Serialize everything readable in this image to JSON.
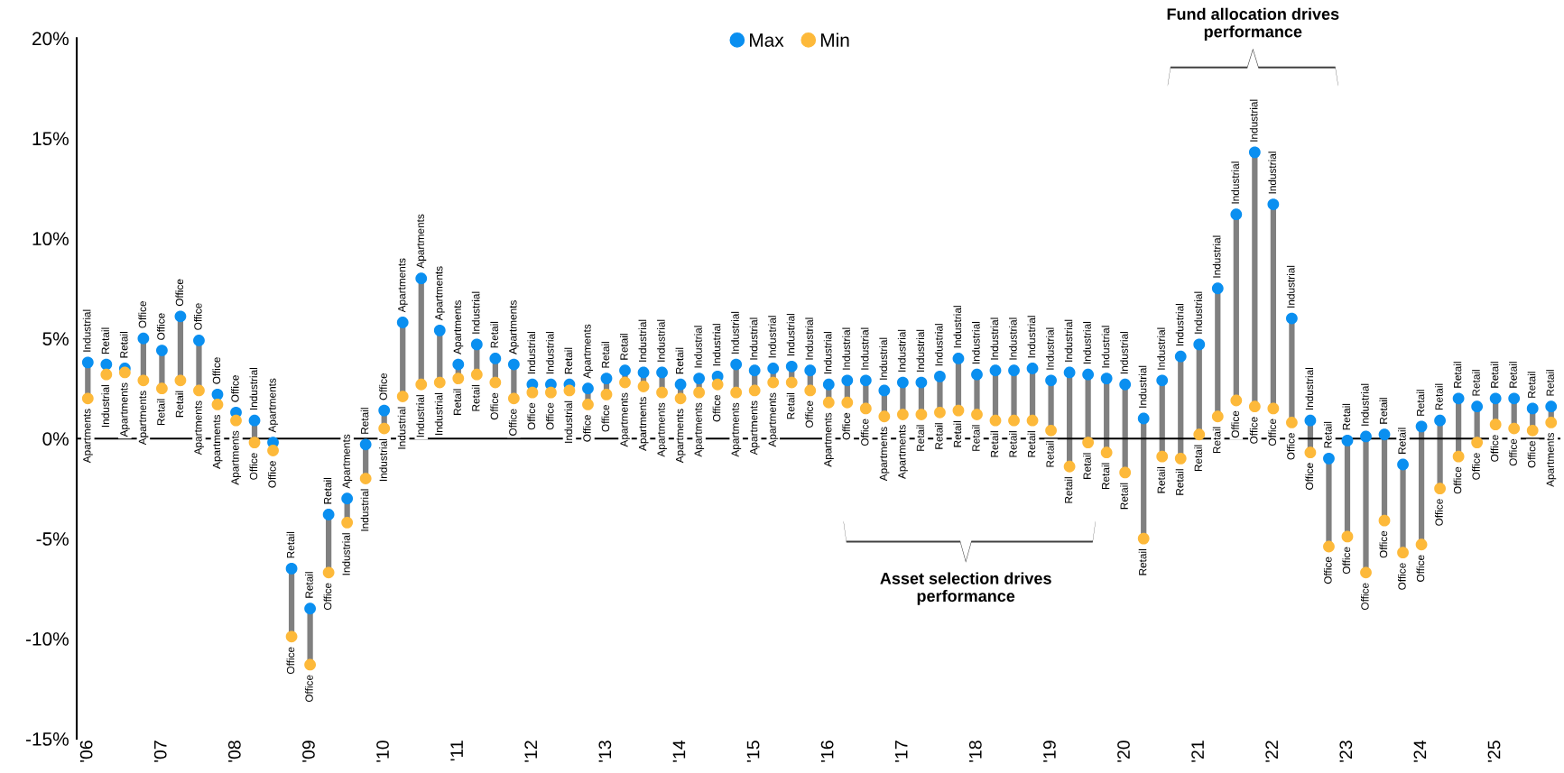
{
  "chart_data": {
    "type": "scatter",
    "categories": [
      "'06",
      null,
      null,
      null,
      "'07",
      null,
      null,
      null,
      "'08",
      null,
      null,
      null,
      "'09",
      null,
      null,
      null,
      "'10",
      null,
      null,
      null,
      "'11",
      null,
      null,
      null,
      "'12",
      null,
      null,
      null,
      "'13",
      null,
      null,
      null,
      "'14",
      null,
      null,
      null,
      "'15",
      null,
      null,
      null,
      "'16",
      null,
      null,
      null,
      "'17",
      null,
      null,
      null,
      "'18",
      null,
      null,
      null,
      "'19",
      null,
      null,
      null,
      "'20",
      null,
      null,
      null,
      "'21",
      null,
      null,
      null,
      "'22",
      null,
      null,
      null,
      "'23",
      null,
      null,
      null,
      "'24",
      null,
      null,
      null,
      "'25",
      null,
      null,
      null
    ],
    "series": [
      {
        "name": "Max",
        "color": "#0a8ff0",
        "values": [
          3.8,
          3.7,
          3.5,
          5.0,
          4.4,
          6.1,
          4.9,
          2.2,
          1.3,
          0.9,
          -0.2,
          -6.5,
          -8.5,
          -3.8,
          -3.0,
          -0.3,
          1.4,
          5.8,
          8.0,
          5.4,
          3.7,
          4.7,
          4.0,
          3.7,
          2.7,
          2.7,
          2.7,
          2.5,
          3.0,
          3.4,
          3.3,
          3.3,
          2.7,
          3.0,
          3.1,
          3.7,
          3.4,
          3.5,
          3.6,
          3.4,
          2.7,
          2.9,
          2.9,
          2.4,
          2.8,
          2.8,
          3.1,
          4.0,
          3.2,
          3.4,
          3.4,
          3.5,
          2.9,
          3.3,
          3.2,
          3.0,
          2.7,
          1.0,
          2.9,
          4.1,
          4.7,
          7.5,
          11.2,
          14.3,
          11.7,
          6.0,
          0.9,
          -1.0,
          -0.1,
          0.1,
          0.2,
          -1.3,
          0.6,
          0.9,
          2.0,
          1.6,
          2.0,
          2.0,
          1.5,
          1.6
        ],
        "value_labels": [
          "Industrial",
          "Retail",
          "Retail",
          "Office",
          "Office",
          "Office",
          "Office",
          "Office",
          "Office",
          "Industrial",
          "Apartments",
          "Retail",
          "Retail",
          "Retail",
          "Apartments",
          "Retail",
          "Office",
          "Apartments",
          "Apartments",
          "Apartments",
          "Apartments",
          "Industrial",
          "Retail",
          "Apartments",
          "Industrial",
          "Industrial",
          "Retail",
          "Apartments",
          "Retail",
          "Retail",
          "Industrial",
          "Industrial",
          "Retail",
          "Industrial",
          "Industrial",
          "Industrial",
          "Industrial",
          "Industrial",
          "Industrial",
          "Industrial",
          "Industrial",
          "Industrial",
          "Industrial",
          "Industrial",
          "Industrial",
          "Industrial",
          "Industrial",
          "Industrial",
          "Industrial",
          "Industrial",
          "Industrial",
          "Industrial",
          "Industrial",
          "Industrial",
          "Industrial",
          "Industrial",
          "Industrial",
          "Industrial",
          "Industrial",
          "Industrial",
          "Industrial",
          "Industrial",
          "Industrial",
          "Industrial",
          "Industrial",
          "Industrial",
          "Industrial",
          "Retail",
          "Retail",
          "Industrial",
          "Retail",
          "Retail",
          "Retail",
          "Retail",
          "Retail",
          "Retail",
          "Retail",
          "Retail",
          "Retail",
          "Retail"
        ]
      },
      {
        "name": "Min",
        "color": "#fdb93a",
        "values": [
          2.0,
          3.2,
          3.3,
          2.9,
          2.5,
          2.9,
          2.4,
          1.7,
          0.9,
          -0.2,
          -0.6,
          -9.9,
          -11.3,
          -6.7,
          -4.2,
          -2.0,
          0.5,
          2.1,
          2.7,
          2.8,
          3.0,
          3.2,
          2.8,
          2.0,
          2.3,
          2.3,
          2.4,
          1.7,
          2.2,
          2.8,
          2.6,
          2.3,
          2.0,
          2.3,
          2.7,
          2.3,
          2.4,
          2.8,
          2.8,
          2.4,
          1.8,
          1.8,
          1.5,
          1.1,
          1.2,
          1.2,
          1.3,
          1.4,
          1.2,
          0.9,
          0.9,
          0.9,
          0.4,
          -1.4,
          -0.2,
          -0.7,
          -1.7,
          -5.0,
          -0.9,
          -1.0,
          0.2,
          1.1,
          1.9,
          1.6,
          1.5,
          0.8,
          -0.7,
          -5.4,
          -4.9,
          -6.7,
          -4.1,
          -5.7,
          -5.3,
          -2.5,
          -0.9,
          -0.2,
          0.7,
          0.5,
          0.4,
          0.8
        ],
        "value_labels": [
          "Apartments",
          "Industrial",
          "Apartments",
          "Apartments",
          "Retail",
          "Retail",
          "Apartments",
          "Apartments",
          "Apartments",
          "Office",
          "Office",
          "Office",
          "Office",
          "Office",
          "Industrial",
          "Industrial",
          "Industrial",
          "Industrial",
          "Industrial",
          "Industrial",
          "Retail",
          "Retail",
          "Office",
          "Office",
          "Office",
          "Office",
          "Industrial",
          "Office",
          "Office",
          "Apartments",
          "Apartments",
          "Apartments",
          "Apartments",
          "Apartments",
          "Office",
          "Apartments",
          "Apartments",
          "Apartments",
          "Retail",
          "Office",
          "Apartments",
          "Office",
          "Office",
          "Apartments",
          "Apartments",
          "Retail",
          "Retail",
          "Retail",
          "Retail",
          "Retail",
          "Retail",
          "Retail",
          "Retail",
          "Retail",
          "Retail",
          "Retail",
          "Retail",
          "Retail",
          "Retail",
          "Retail",
          "Retail",
          "Retail",
          "Office",
          "Office",
          "Office",
          "Office",
          "Office",
          "Office",
          "Office",
          "Office",
          "Office",
          "Office",
          "Office",
          "Office",
          "Office",
          "Office",
          "Office",
          "Office",
          "Office",
          "Apartments"
        ]
      }
    ],
    "ylim": [
      -15,
      20
    ],
    "yticks": [
      {
        "value": -15,
        "label": "-15%"
      },
      {
        "value": -10,
        "label": "-10%"
      },
      {
        "value": -5,
        "label": "-5%"
      },
      {
        "value": 0,
        "label": "0%"
      },
      {
        "value": 5,
        "label": "5%"
      },
      {
        "value": 10,
        "label": "10%"
      },
      {
        "value": 15,
        "label": "15%"
      },
      {
        "value": 20,
        "label": "20%"
      }
    ],
    "ref_lines": [
      {
        "axis": "y",
        "value": 0,
        "color": "#000000"
      }
    ],
    "annotations": [
      "Fund allocation drives\nperformance",
      "Asset selection drives\nperformance"
    ],
    "legend": "top",
    "marker": "circle"
  }
}
